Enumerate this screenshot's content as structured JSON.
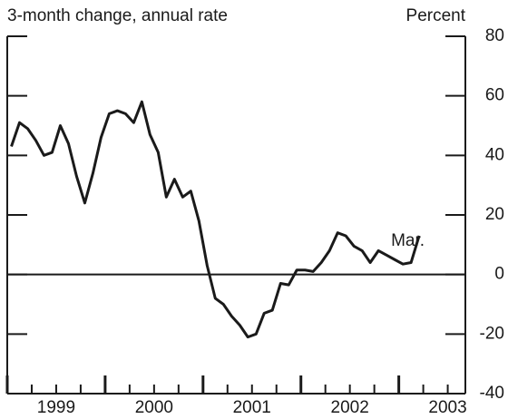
{
  "chart_data": {
    "type": "line",
    "subtitle": "3-month change, annual rate",
    "y_axis_label": "Percent",
    "annotation": "Mar.",
    "x": [
      1999.042,
      1999.125,
      1999.208,
      1999.292,
      1999.375,
      1999.458,
      1999.542,
      1999.625,
      1999.708,
      1999.792,
      1999.875,
      1999.958,
      2000.042,
      2000.125,
      2000.208,
      2000.292,
      2000.375,
      2000.458,
      2000.542,
      2000.625,
      2000.708,
      2000.792,
      2000.875,
      2000.958,
      2001.042,
      2001.125,
      2001.208,
      2001.292,
      2001.375,
      2001.458,
      2001.542,
      2001.625,
      2001.708,
      2001.792,
      2001.875,
      2001.958,
      2002.042,
      2002.125,
      2002.208,
      2002.292,
      2002.375,
      2002.458,
      2002.542,
      2002.625,
      2002.708,
      2002.792,
      2002.875,
      2002.958,
      2003.042,
      2003.125,
      2003.208
    ],
    "series": [
      {
        "color": "#1a1a1a",
        "values": [
          43,
          51,
          49,
          45,
          40,
          41,
          50,
          44,
          33,
          24,
          34,
          46,
          54,
          55,
          54,
          51,
          58,
          47,
          41,
          26,
          32,
          26,
          28,
          18,
          3,
          -8,
          -10,
          -14,
          -17,
          -21,
          -20,
          -13,
          -12,
          -3,
          -3.5,
          1.5,
          1.5,
          1,
          4,
          8,
          14,
          13,
          9.5,
          8,
          4,
          8,
          6.5,
          5,
          3.5,
          4,
          13
        ]
      }
    ],
    "xlim": [
      1999,
      2003.68
    ],
    "xticks": [
      {
        "value": 1999,
        "label": "1999"
      },
      {
        "value": 2000,
        "label": "2000"
      },
      {
        "value": 2001,
        "label": "2001"
      },
      {
        "value": 2002,
        "label": "2002"
      },
      {
        "value": 2003,
        "label": "2003"
      }
    ],
    "ylim": [
      -40,
      80
    ],
    "yticks": [
      -40,
      -20,
      0,
      20,
      40,
      60,
      80
    ]
  }
}
